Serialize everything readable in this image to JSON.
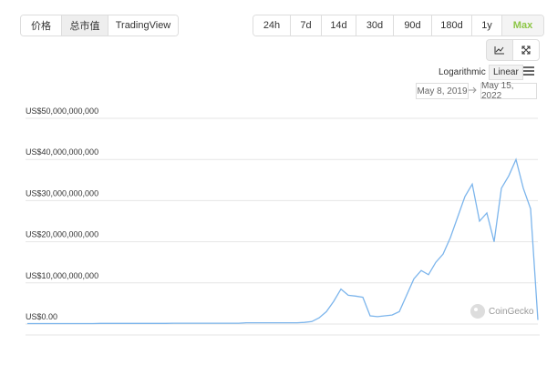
{
  "ui": {
    "view_buttons": [
      "价格",
      "总市值",
      "TradingView"
    ],
    "range_buttons": [
      "24h",
      "7d",
      "14d",
      "30d",
      "90d",
      "180d",
      "1y",
      "Max"
    ],
    "scale_label": "Logarithmic",
    "scale_button": "Linear",
    "date_from": "May 8, 2019",
    "date_to": "May 15, 2022",
    "watermark": "CoinGecko"
  },
  "chart_data": {
    "type": "line",
    "color": "#7cb5ec",
    "logscale": false,
    "grid": true,
    "categories": [
      null,
      null,
      null,
      null,
      null,
      null,
      null,
      null,
      null,
      null,
      null,
      null,
      null,
      null,
      null,
      null,
      null,
      null,
      null,
      null,
      null,
      null,
      null,
      null,
      null,
      null,
      null,
      null,
      null,
      null,
      null,
      null,
      null,
      null,
      null,
      null,
      null,
      null,
      null,
      null,
      null,
      null,
      null,
      null,
      null,
      null,
      null,
      null,
      null,
      null,
      null,
      null,
      null,
      null,
      null,
      null,
      null,
      null,
      null,
      null,
      null,
      null,
      null,
      null,
      null,
      null,
      null,
      null,
      null,
      null,
      null
    ],
    "values": [
      100000000,
      100000000,
      100000000,
      100000000,
      100000000,
      100000000,
      100000000,
      100000000,
      100000000,
      100000000,
      150000000,
      150000000,
      150000000,
      150000000,
      150000000,
      150000000,
      150000000,
      150000000,
      150000000,
      150000000,
      200000000,
      200000000,
      200000000,
      200000000,
      200000000,
      200000000,
      200000000,
      200000000,
      200000000,
      200000000,
      300000000,
      300000000,
      300000000,
      300000000,
      300000000,
      300000000,
      300000000,
      300000000,
      400000000,
      600000000,
      1500000000,
      3000000000,
      5500000000,
      8500000000,
      7000000000,
      6800000000,
      6500000000,
      2000000000,
      1800000000,
      2000000000,
      2200000000,
      3000000000,
      7000000000,
      11000000000,
      13000000000,
      12000000000,
      15000000000,
      17000000000,
      21000000000,
      26000000000,
      31000000000,
      34000000000,
      25000000000,
      27000000000,
      20000000000,
      33000000000,
      36000000000,
      40000000000,
      33000000000,
      28000000000,
      1000000000
    ],
    "ylim": [
      0,
      50000000000
    ],
    "yticks": [
      {
        "value": 0,
        "label": "US$0.00"
      },
      {
        "value": 10000000000,
        "label": "US$10,000,000,000"
      },
      {
        "value": 20000000000,
        "label": "US$20,000,000,000"
      },
      {
        "value": 30000000000,
        "label": "US$30,000,000,000"
      },
      {
        "value": 40000000000,
        "label": "US$40,000,000,000"
      },
      {
        "value": 50000000000,
        "label": "US$50,000,000,000"
      }
    ]
  }
}
